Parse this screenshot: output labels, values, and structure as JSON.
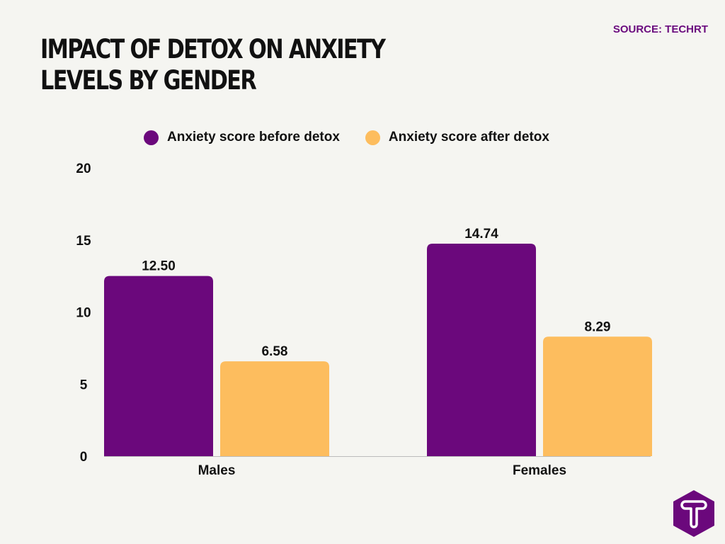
{
  "title": "Impact of detox on anxiety levels by gender",
  "source": "SOURCE: TECHRT",
  "chart_data": {
    "type": "bar",
    "title": "Impact of detox on anxiety levels by gender",
    "categories": [
      "Males",
      "Females"
    ],
    "series": [
      {
        "name": "Anxiety score before detox",
        "values": [
          12.5,
          14.74
        ],
        "labels": [
          "12.50",
          "14.74"
        ],
        "color": "#6b087c"
      },
      {
        "name": "Anxiety score after detox",
        "values": [
          6.58,
          8.29
        ],
        "labels": [
          "6.58",
          "8.29"
        ],
        "color": "#fdbd5e"
      }
    ],
    "yticks": [
      "0",
      "5",
      "10",
      "15",
      "20"
    ],
    "ylim": [
      0,
      20
    ],
    "grid": false,
    "legend": "top",
    "xlabel": "",
    "ylabel": ""
  }
}
